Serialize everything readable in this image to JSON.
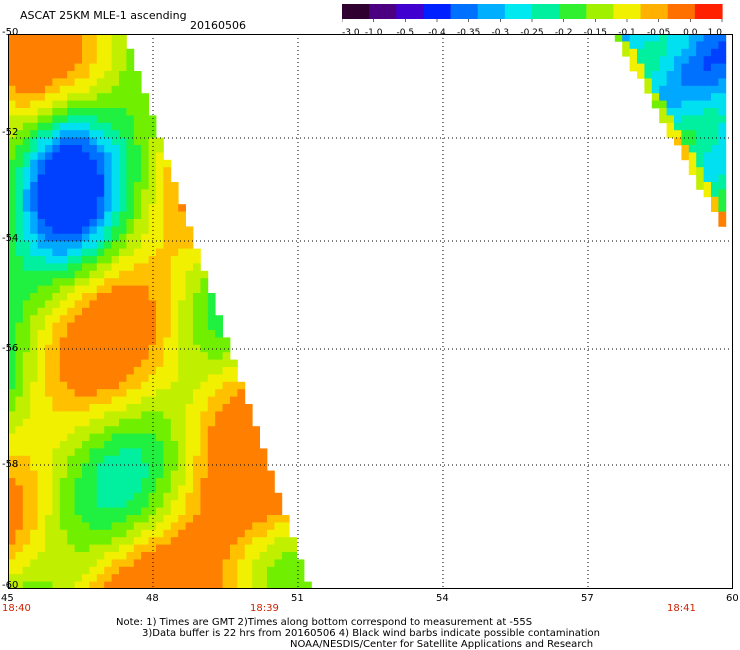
{
  "header": {
    "title": "ASCAT 25KM MLE-1 ascending",
    "date": "20160506"
  },
  "colorbar": {
    "ticks": [
      "-3.0",
      "-1.0",
      "-0.5",
      "-0.4",
      "-0.35",
      "-0.3",
      "-0.25",
      "-0.2",
      "-0.15",
      "-0.1",
      "-0.05",
      "0.0",
      "1.0"
    ],
    "colors": [
      "#300030",
      "#4a0080",
      "#4000d0",
      "#0020ff",
      "#0070ff",
      "#00b0ff",
      "#00e8f0",
      "#00f0a0",
      "#30f030",
      "#a0f000",
      "#f0f000",
      "#ffb000",
      "#ff7000",
      "#ff2000"
    ]
  },
  "axes": {
    "x_ticks": [
      "45",
      "48",
      "51",
      "54",
      "57",
      "60"
    ],
    "y_ticks": [
      "-50",
      "-52",
      "-54",
      "-56",
      "-58",
      "-60"
    ]
  },
  "times": {
    "left": "18:40",
    "middle": "18:39",
    "right": "18:41"
  },
  "notes": {
    "line1": "Note: 1) Times are GMT 2)Times along bottom correspond to measurement at -55S",
    "line2": "3)Data buffer is 22 hrs from 20160506 4) Black wind barbs indicate possible contamination",
    "line3": "NOAA/NESDIS/Center for Satellite Applications and Research"
  }
}
